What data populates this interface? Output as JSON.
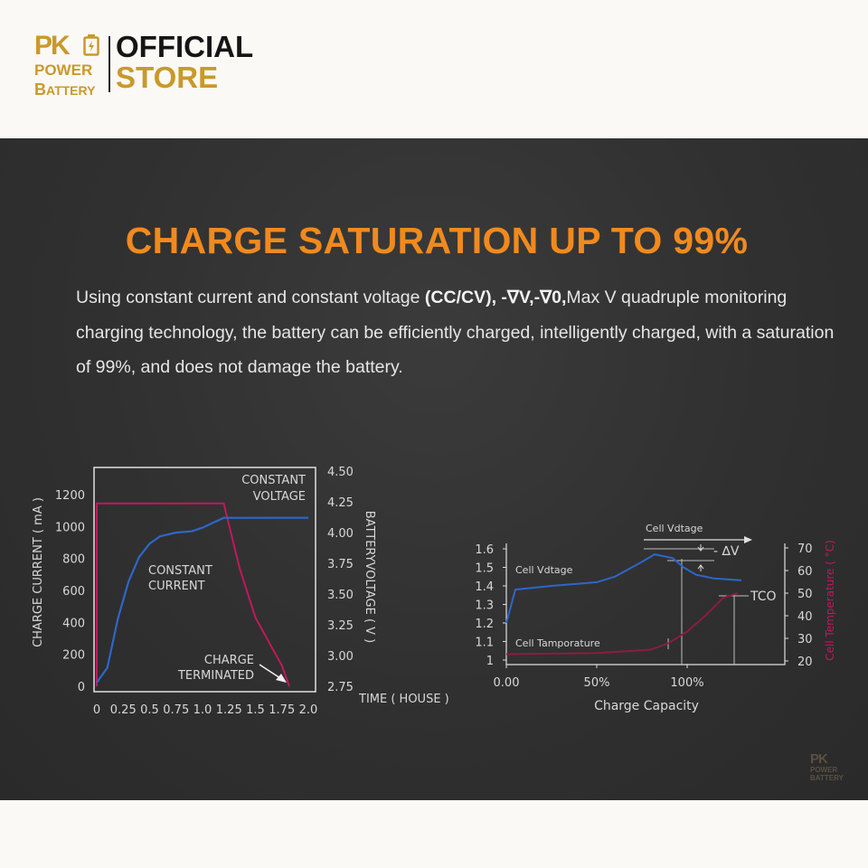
{
  "brand": {
    "logo_pk": "PK",
    "logo_power": "POWER",
    "logo_battery_b": "B",
    "logo_battery_rest": "ATTERY",
    "official": "OFFICIAL",
    "store": "STORE",
    "gold": "#c9992b",
    "battery_icon": "battery-bolt-icon"
  },
  "headline": "CHARGE SATURATION UP TO 99%",
  "description": {
    "part1": "Using constant current and constant voltage ",
    "bold1": "(CC/CV), -∇V,-∇0,",
    "part2": "Max V quadruple monitoring charging technology, the battery can be efficiently charged, intelligently charged, with a saturation of 99%, and does not damage the battery."
  },
  "colors": {
    "accent": "#f08a1e",
    "panel": "#303030",
    "current_line": "#2e66c9",
    "voltage_line": "#c2185b",
    "temp_line": "#8a1e3c"
  },
  "chart_data": [
    {
      "type": "line",
      "title": "",
      "xlabel": "TIME ( HOUSE )",
      "ylabel": "CHARGE CURRENT ( mA )",
      "y2label": "BATTERYVOLTAGE ( V )",
      "x_ticks": [
        "0",
        "0.25",
        "0.5",
        "0.75",
        "1.0",
        "1.25",
        "1.5",
        "1.75",
        "2.0"
      ],
      "y_ticks": [
        "0",
        "200",
        "400",
        "600",
        "800",
        "1000",
        "1200"
      ],
      "y2_ticks": [
        "2.75",
        "3.00",
        "3.25",
        "3.50",
        "3.75",
        "4.00",
        "4.25",
        "4.50"
      ],
      "xlim": [
        0,
        2.0
      ],
      "ylim": [
        0,
        1300
      ],
      "y2lim": [
        2.75,
        4.5
      ],
      "annotations": {
        "constant_voltage_1": "CONSTANT",
        "constant_voltage_2": "VOLTAGE",
        "constant_current_1": "CONSTANT",
        "constant_current_2": "CURRENT",
        "charge_terminated_1": "CHARGE",
        "charge_terminated_2": "TERMINATED"
      },
      "series": [
        {
          "axis": "left",
          "color": "#c2185b",
          "x": [
            0,
            0.0,
            0.03,
            1.2,
            1.35,
            1.5,
            1.65,
            1.75,
            1.82
          ],
          "y": [
            0,
            1145,
            1145,
            1145,
            740,
            430,
            250,
            130,
            0
          ]
        },
        {
          "axis": "right",
          "color": "#2e66c9",
          "x": [
            0,
            0.1,
            0.2,
            0.3,
            0.4,
            0.5,
            0.6,
            0.75,
            0.9,
            1.0,
            1.1,
            1.2,
            1.25,
            1.5,
            2.0
          ],
          "y": [
            2.78,
            2.9,
            3.3,
            3.6,
            3.8,
            3.91,
            3.97,
            4.0,
            4.01,
            4.04,
            4.08,
            4.12,
            4.12,
            4.12,
            4.12
          ]
        }
      ]
    },
    {
      "type": "line",
      "title": "",
      "xlabel": "Charge Capacity",
      "ylabel": "",
      "y2label": "Cell Temperature ( °C)",
      "x_ticks": [
        "0.00",
        "50%",
        "100%"
      ],
      "y_ticks": [
        "1",
        "1.1",
        "1.2",
        "1.3",
        "1.4",
        "1.5",
        "1.6"
      ],
      "y2_ticks": [
        "20",
        "30",
        "40",
        "50",
        "60",
        "70"
      ],
      "xlim": [
        0,
        1.5
      ],
      "ylim": [
        1.0,
        1.6
      ],
      "y2lim": [
        20,
        70
      ],
      "annotations": {
        "cell_voltage_top": "Cell Vdtage",
        "cell_voltage": "Cell Vdtage",
        "delta_v": "- ∆V",
        "cell_temperature": "Cell Tamporature",
        "tco": "TCO"
      },
      "series": [
        {
          "axis": "left",
          "color": "#2e66c9",
          "x": [
            0,
            0.05,
            0.25,
            0.5,
            0.6,
            0.75,
            0.82,
            0.92,
            0.98,
            1.05,
            1.15,
            1.3
          ],
          "y": [
            1.2,
            1.38,
            1.4,
            1.42,
            1.45,
            1.53,
            1.57,
            1.55,
            1.5,
            1.46,
            1.44,
            1.43
          ]
        },
        {
          "axis": "right",
          "color": "#8a1e3c",
          "x": [
            0,
            0.5,
            0.8,
            0.9,
            1.0,
            1.1,
            1.2,
            1.28
          ],
          "y": [
            23,
            23.5,
            25,
            28,
            33,
            40,
            48,
            50
          ]
        }
      ]
    }
  ],
  "watermark": {
    "pk": "PK",
    "power": "POWER",
    "battery": "BATTERY"
  }
}
